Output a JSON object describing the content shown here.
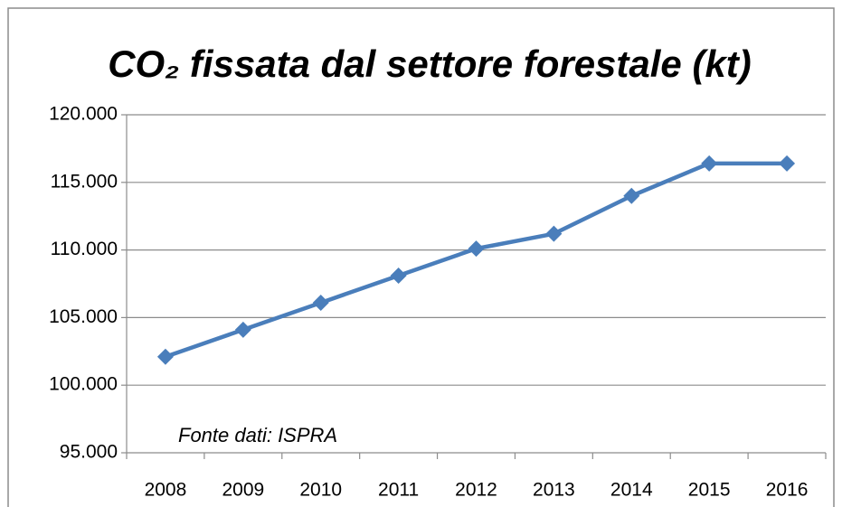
{
  "chart_data": {
    "type": "line",
    "title": "CO₂ fissata dal settore forestale (kt)",
    "annotation": "Fonte dati: ISPRA",
    "categories": [
      "2008",
      "2009",
      "2010",
      "2011",
      "2012",
      "2013",
      "2014",
      "2015",
      "2016"
    ],
    "values": [
      102100,
      104100,
      106100,
      108100,
      110100,
      111200,
      114000,
      116400,
      116400
    ],
    "color": "#4a7ebb",
    "ylim": [
      95000,
      120000
    ],
    "yticks": [
      {
        "value": 95000,
        "label": "95.000"
      },
      {
        "value": 100000,
        "label": "100.000"
      },
      {
        "value": 105000,
        "label": "105.000"
      },
      {
        "value": 110000,
        "label": "110.000"
      },
      {
        "value": 115000,
        "label": "115.000"
      },
      {
        "value": 120000,
        "label": "120.000"
      }
    ],
    "grid": true
  }
}
